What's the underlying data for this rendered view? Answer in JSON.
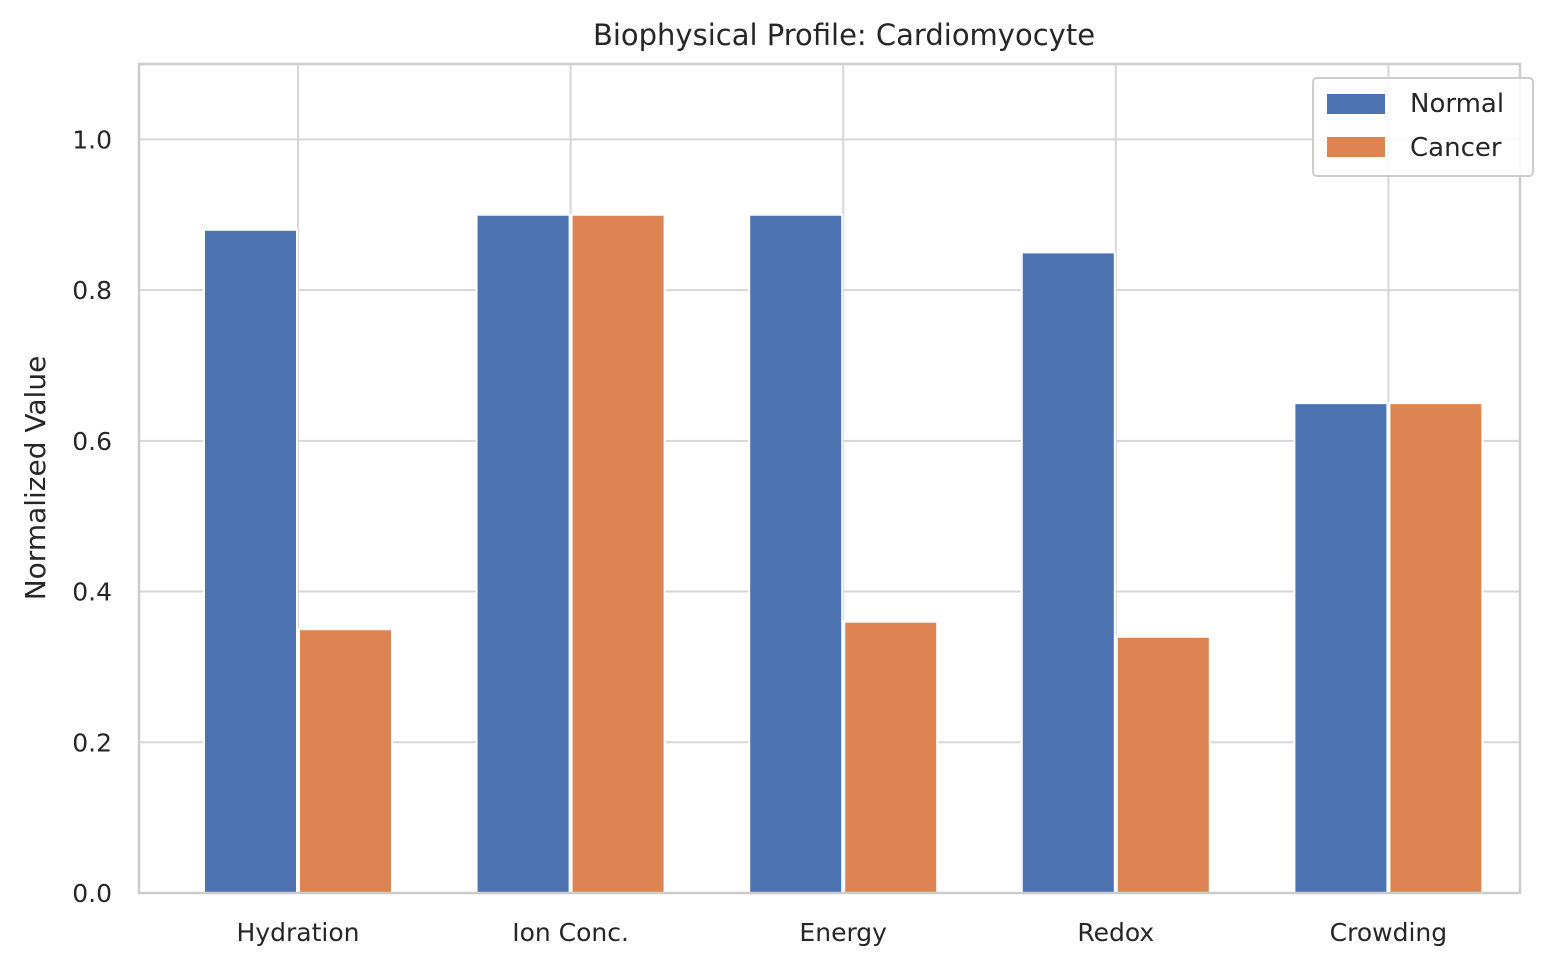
{
  "chart_data": {
    "type": "bar",
    "title": "Biophysical Profile: Cardiomyocyte",
    "xlabel": "",
    "ylabel": "Normalized Value",
    "categories": [
      "Hydration",
      "Ion Conc.",
      "Energy",
      "Redox",
      "Crowding"
    ],
    "series": [
      {
        "name": "Normal",
        "color": "#4c72b0",
        "values": [
          0.88,
          0.9,
          0.9,
          0.85,
          0.65
        ]
      },
      {
        "name": "Cancer",
        "color": "#dd8452",
        "values": [
          0.35,
          0.9,
          0.36,
          0.34,
          0.65
        ]
      }
    ],
    "ylim": [
      0,
      1.1
    ],
    "yticks": [
      "0.0",
      "0.2",
      "0.4",
      "0.6",
      "0.8",
      "1.0"
    ],
    "grid": true,
    "legend_position": "top-right"
  }
}
